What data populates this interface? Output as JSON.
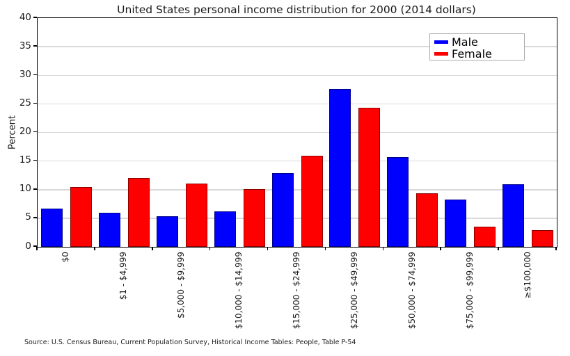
{
  "source": "Source: U.S. Census Bureau, Current Population Survey, Historical Income Tables: People, Table P-54",
  "chart_data": {
    "type": "bar",
    "title": "United States personal income distribution for 2000 (2014 dollars)",
    "xlabel": "",
    "ylabel": "Percent",
    "ylim": [
      0,
      40
    ],
    "yticks": [
      0,
      5,
      10,
      15,
      20,
      25,
      30,
      35,
      40
    ],
    "grid": "horizontal",
    "legend_position": "upper right",
    "categories": [
      "$0",
      "$1 - $4,999",
      "$5,000 - $9,999",
      "$10,000 - $14,999",
      "$15,000 - $24,999",
      "$25,000 - $49,999",
      "$50,000 - $74,999",
      "$75,000 - $99,999",
      "≥$100,000"
    ],
    "series": [
      {
        "name": "Male",
        "color": "#0000ff",
        "values": [
          6.7,
          5.9,
          5.3,
          6.2,
          12.9,
          27.6,
          15.7,
          8.3,
          11.0
        ]
      },
      {
        "name": "Female",
        "color": "#ff0000",
        "values": [
          10.4,
          12.0,
          11.1,
          10.1,
          15.9,
          24.3,
          9.4,
          3.5,
          2.9
        ]
      }
    ],
    "colors": {
      "grid": "#d9d9d9",
      "axis": "#000000",
      "text": "#1a1a1a"
    }
  }
}
